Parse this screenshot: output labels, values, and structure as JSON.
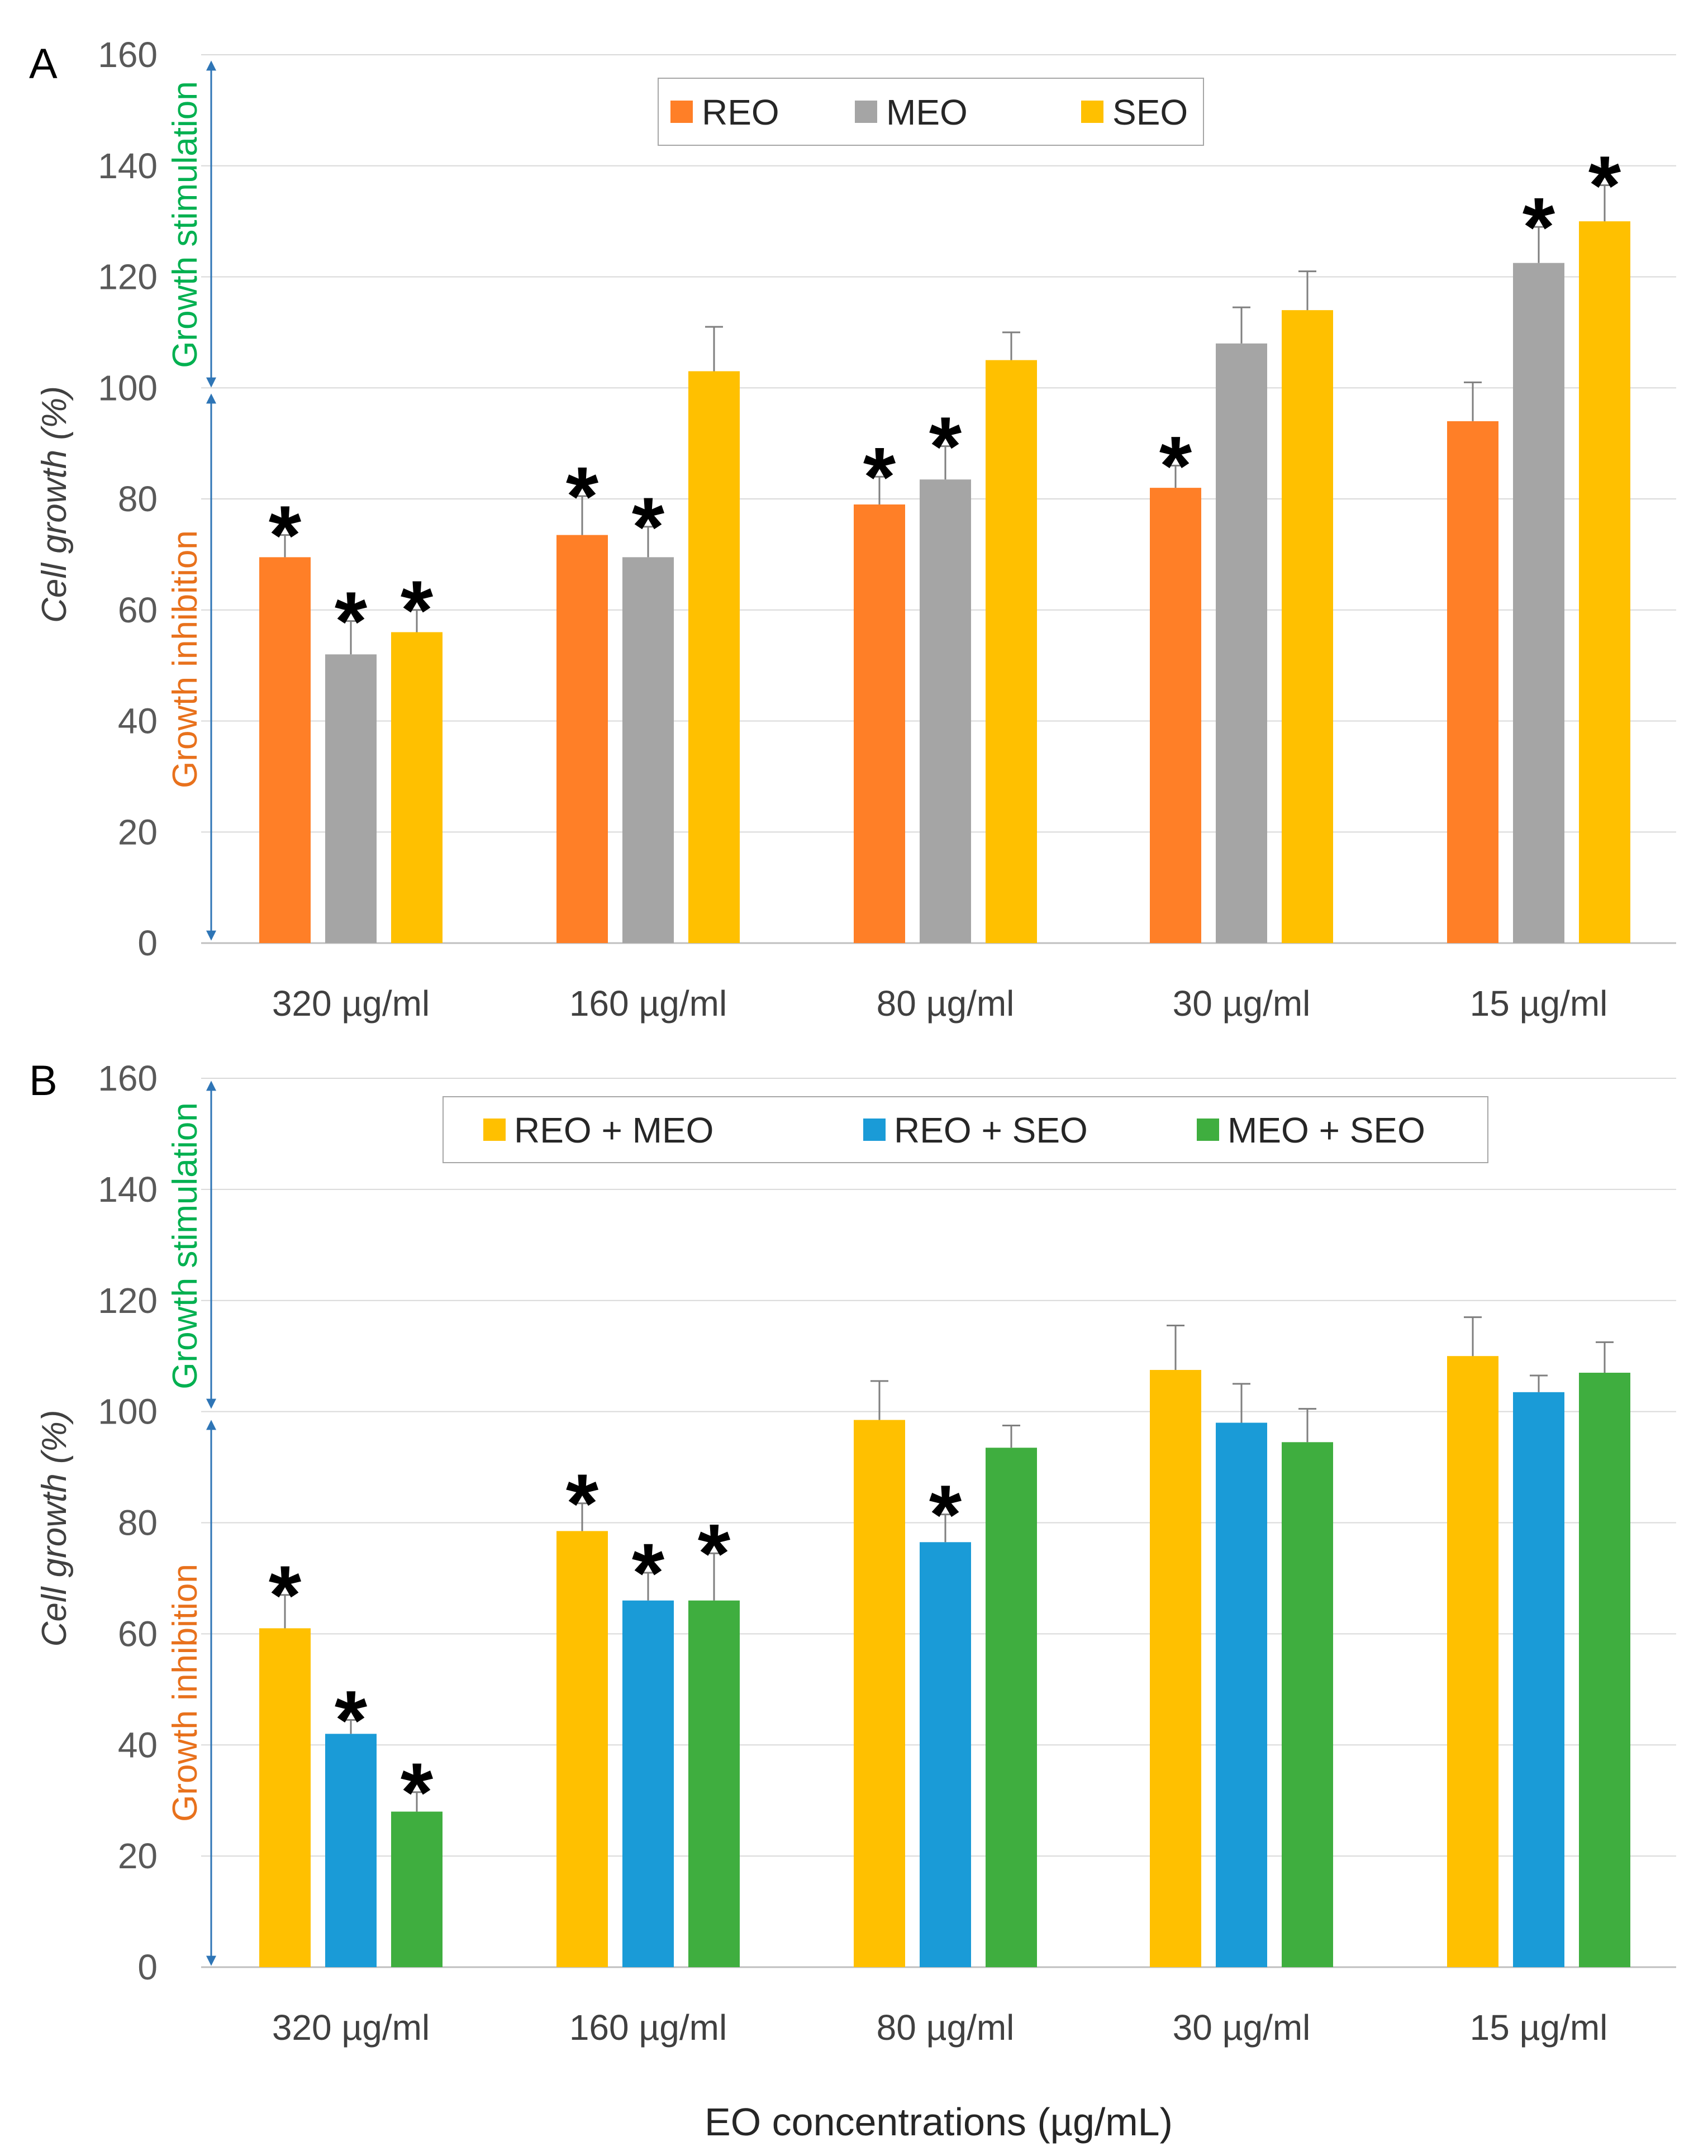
{
  "figure": {
    "xlabel": "EO concentrations (µg/mL)",
    "ylabel": "Cell growth (%)",
    "stimulation_label": "Growth stimulation",
    "inhibition_label": "Growth inhibition",
    "significance_marker": "*"
  },
  "colors": {
    "REO": "#FF7F27",
    "MEO": "#A5A5A5",
    "SEO": "#FFC000",
    "REO + MEO": "#FFC000",
    "REO + SEO": "#1A9BD7",
    "MEO + SEO": "#3FAE3F",
    "stimulation_text": "#00B050",
    "inhibition_text": "#E8711C",
    "arrow": "#2E75B6",
    "grid": "#D9D9D9",
    "axis_text": "#595959"
  },
  "chart_data": [
    {
      "type": "bar",
      "panel": "A",
      "title": "",
      "xlabel": "",
      "ylabel": "Cell growth (%)",
      "ylim": [
        0,
        160
      ],
      "yticks": [
        "0",
        "20",
        "40",
        "60",
        "80",
        "100",
        "120",
        "140",
        "160"
      ],
      "grid": true,
      "legend_position": "top-center",
      "categories": [
        "320 µg/ml",
        "160 µg/ml",
        "80 µg/ml",
        "30 µg/ml",
        "15 µg/ml"
      ],
      "series": [
        {
          "name": "REO",
          "values": [
            69.5,
            73.5,
            79,
            82,
            94
          ],
          "errors": [
            4,
            7,
            5,
            4,
            7
          ],
          "significant": [
            true,
            true,
            true,
            true,
            false
          ]
        },
        {
          "name": "MEO",
          "values": [
            52,
            69.5,
            83.5,
            108,
            122.5
          ],
          "errors": [
            6,
            5.5,
            6,
            6.5,
            6.5
          ],
          "significant": [
            true,
            true,
            true,
            false,
            true
          ]
        },
        {
          "name": "SEO",
          "values": [
            56,
            103,
            105,
            114,
            130
          ],
          "errors": [
            4,
            8,
            5,
            7,
            6.5
          ],
          "significant": [
            true,
            false,
            false,
            false,
            true
          ]
        }
      ]
    },
    {
      "type": "bar",
      "panel": "B",
      "title": "",
      "xlabel": "EO concentrations (µg/mL)",
      "ylabel": "Cell growth (%)",
      "ylim": [
        0,
        160
      ],
      "yticks": [
        "0",
        "20",
        "40",
        "60",
        "80",
        "100",
        "120",
        "140",
        "160"
      ],
      "grid": true,
      "legend_position": "top-center",
      "categories": [
        "320 µg/ml",
        "160 µg/ml",
        "80 µg/ml",
        "30 µg/ml",
        "15 µg/ml"
      ],
      "series": [
        {
          "name": "REO + MEO",
          "values": [
            61,
            78.5,
            98.5,
            107.5,
            110
          ],
          "errors": [
            6,
            5,
            7,
            8,
            7
          ],
          "significant": [
            true,
            true,
            false,
            false,
            false
          ]
        },
        {
          "name": "REO + SEO",
          "values": [
            42,
            66,
            76.5,
            98,
            103.5
          ],
          "errors": [
            2.5,
            5,
            5,
            7,
            3
          ],
          "significant": [
            true,
            true,
            true,
            false,
            false
          ]
        },
        {
          "name": "MEO + SEO",
          "values": [
            28,
            66,
            93.5,
            94.5,
            107
          ],
          "errors": [
            3.5,
            8.5,
            4,
            6,
            5.5
          ],
          "significant": [
            true,
            true,
            false,
            false,
            false
          ]
        }
      ]
    }
  ]
}
